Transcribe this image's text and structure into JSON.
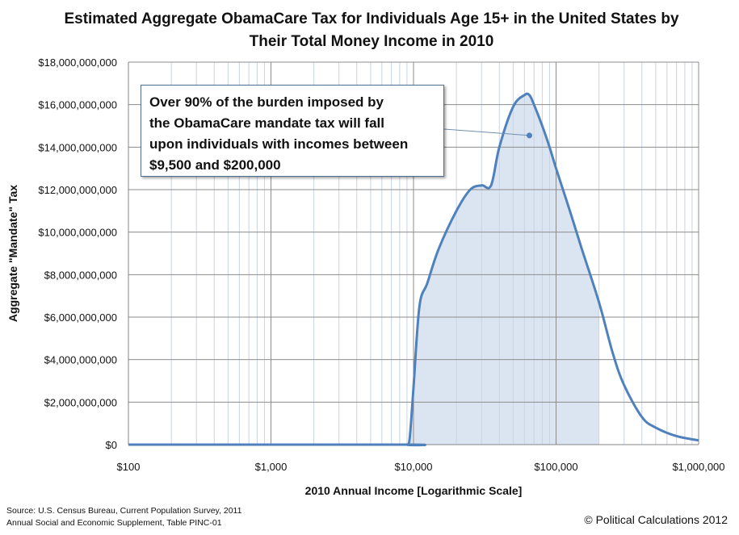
{
  "chart_data": {
    "type": "area",
    "title": "Estimated Aggregate ObamaCare Tax for Individuals Age 15+ in the United States by Their Total Money Income in 2010",
    "xlabel": "2010 Annual Income [Logarithmic Scale]",
    "ylabel": "Aggregate \"Mandate\" Tax",
    "x_scale": "log",
    "xlim": [
      100,
      1000000
    ],
    "ylim": [
      0,
      18000000000
    ],
    "x_ticks": [
      "$100",
      "$1,000",
      "$10,000",
      "$100,000",
      "$1,000,000"
    ],
    "y_ticks": [
      "$18,000,000,000",
      "$16,000,000,000",
      "$14,000,000,000",
      "$12,000,000,000",
      "$10,000,000,000",
      "$8,000,000,000",
      "$6,000,000,000",
      "$4,000,000,000",
      "$2,000,000,000",
      "$0"
    ],
    "grid": true,
    "series": [
      {
        "color": "#4f81bd",
        "x": [
          100,
          8500,
          9000,
          9400,
          10000,
          11000,
          12500,
          15000,
          20000,
          25000,
          30000,
          35000,
          40000,
          50000,
          60000,
          65000,
          70000,
          80000,
          90000,
          100000,
          125000,
          150000,
          200000,
          250000,
          300000,
          400000,
          500000,
          700000,
          1000000
        ],
        "y": [
          0,
          0,
          0,
          300000000,
          2700000000,
          6500000000,
          7600000000,
          9200000000,
          11000000000,
          12000000000,
          12200000000,
          12200000000,
          14000000000,
          15900000000,
          16450000000,
          16450000000,
          16000000000,
          15000000000,
          14000000000,
          13000000000,
          11000000000,
          9300000000,
          6700000000,
          4300000000,
          2800000000,
          1300000000,
          800000000,
          400000000,
          200000000
        ]
      }
    ],
    "shaded_range": [
      9500,
      200000
    ],
    "shaded_color": "#dbe4f1",
    "annotation": {
      "lines": [
        "Over 90% of the burden imposed by",
        "the ObamaCare  mandate tax will fall",
        "upon individuals with incomes between",
        "$9,500 and $200,000"
      ],
      "point_x": 65000,
      "point_y": 14550000000
    }
  },
  "source_text": "Source: U.S. Census Bureau, Current Population Survey, 2011\nAnnual Social and Economic Supplement, Table PINC-01",
  "copyright": "© Political Calculations 2012"
}
